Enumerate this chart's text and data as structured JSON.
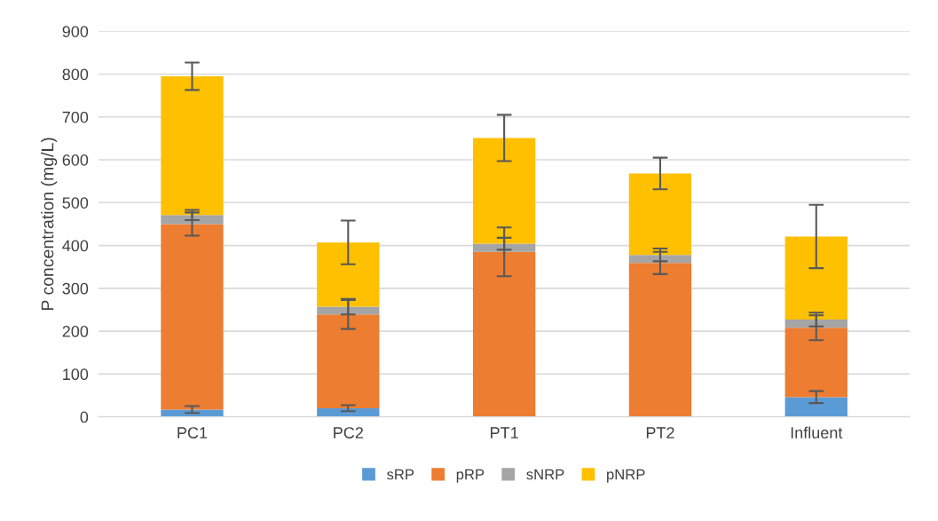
{
  "chart_data": {
    "type": "bar",
    "stacked": true,
    "ylabel": "P concentration (mg/L)",
    "categories": [
      "PC1",
      "PC2",
      "PT1",
      "PT2",
      "Influent"
    ],
    "series": [
      {
        "name": "sRP",
        "color": "#5b9bd5",
        "values": [
          17,
          20,
          null,
          null,
          46
        ],
        "errors": [
          8,
          7,
          null,
          null,
          14
        ]
      },
      {
        "name": "pRP",
        "color": "#ed7d31",
        "values": [
          433,
          219,
          385,
          359,
          162
        ],
        "errors": [
          27,
          34,
          57,
          26,
          29
        ]
      },
      {
        "name": "sNRP",
        "color": "#a5a5a5",
        "values": [
          21,
          18,
          19,
          19,
          19
        ],
        "errors": [
          12,
          18,
          14,
          15,
          16
        ]
      },
      {
        "name": "pNRP",
        "color": "#ffc000",
        "values": [
          324,
          150,
          247,
          190,
          194
        ],
        "errors": [
          32,
          51,
          54,
          37,
          74
        ]
      }
    ],
    "ylim": [
      0,
      900
    ],
    "yticks": [
      0,
      100,
      200,
      300,
      400,
      500,
      600,
      700,
      800,
      900
    ],
    "grid": "y",
    "legend": "bottom"
  }
}
